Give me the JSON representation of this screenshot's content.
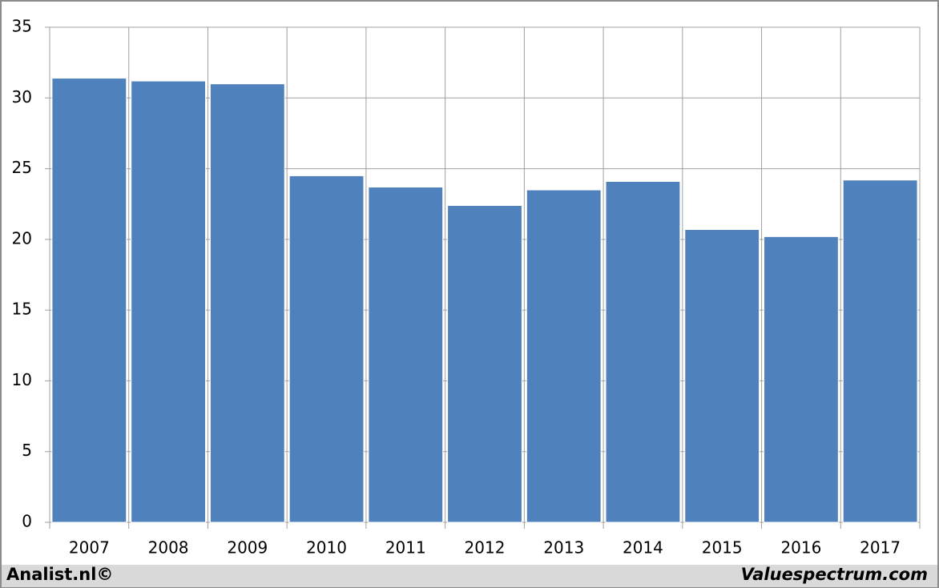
{
  "chart_data": {
    "type": "bar",
    "categories": [
      "2007",
      "2008",
      "2009",
      "2010",
      "2011",
      "2012",
      "2013",
      "2014",
      "2015",
      "2016",
      "2017"
    ],
    "values": [
      31.4,
      31.2,
      31.0,
      24.5,
      23.7,
      22.4,
      23.5,
      24.1,
      20.7,
      20.2,
      24.2
    ],
    "color": "#4f81bd",
    "ylim": [
      0,
      35
    ],
    "yticks": [
      0,
      5,
      10,
      15,
      20,
      25,
      30,
      35
    ],
    "grid": true
  },
  "footer": {
    "left": "Analist.nl©",
    "right": "Valuespectrum.com"
  }
}
